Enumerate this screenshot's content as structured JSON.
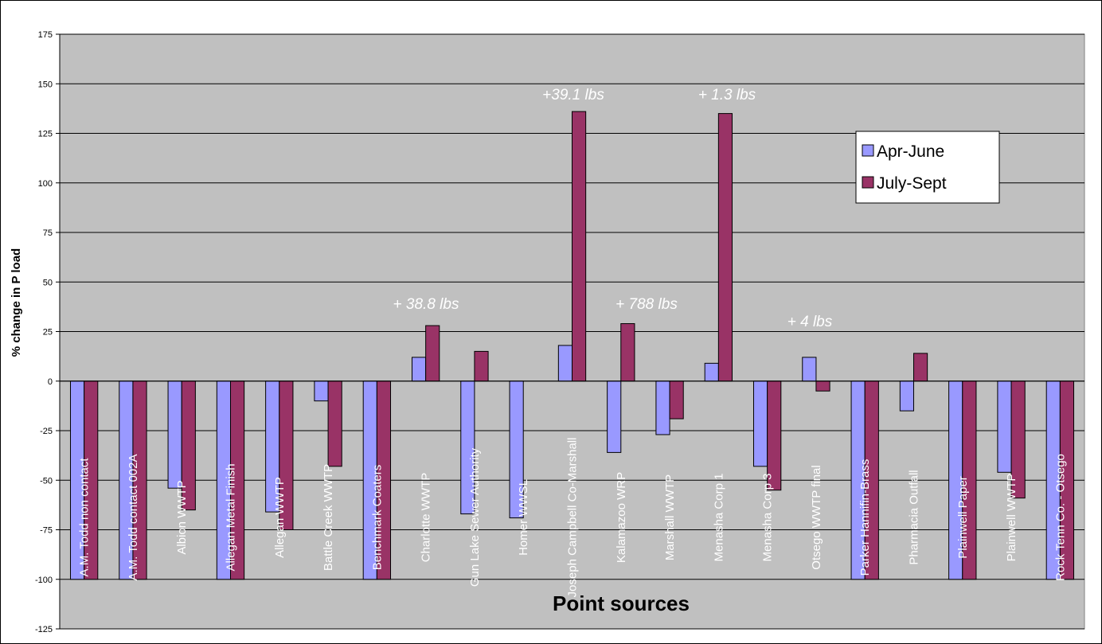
{
  "chart_data": {
    "type": "bar",
    "x_label": "Point sources",
    "y_label": "% change in P load",
    "categories": [
      "A.M. Todd non contact",
      "A.M. Todd contact 002A",
      "Albion WWTP",
      "Allegan Metal Finish",
      "Allegan WWTP",
      "Battle Creek WWTP",
      "Benchmark Coaters",
      "Charlotte WWTP",
      "Gun Lake Sewer Authority",
      "Homer WWSL",
      "Joseph Campbell Co-Marshall",
      "Kalamazoo WRP",
      "Marshall WWTP",
      "Menasha Corp 1",
      "Menasha Corp 3",
      "Otsego WWTP final",
      "Parker Hannifin-Brass",
      "Pharmacia Outfall",
      "Plainwell Paper",
      "Plainwell WWTP",
      "Rock Tenn Co. - Otsego"
    ],
    "series": [
      {
        "name": "Apr-June",
        "color": "#9999ff",
        "values": [
          -100,
          -100,
          -54,
          -100,
          -66,
          -10,
          -100,
          12,
          -67,
          -69,
          18,
          -36,
          -27,
          9,
          -43,
          12,
          -100,
          -15,
          -100,
          -46,
          -100
        ]
      },
      {
        "name": "July-Sept",
        "color": "#993366",
        "values": [
          -100,
          -100,
          -65,
          -100,
          -75,
          -43,
          -100,
          28,
          15,
          null,
          136,
          29,
          -19,
          135,
          -55,
          -5,
          -100,
          14,
          -100,
          -59,
          -100
        ]
      }
    ],
    "annotations": [
      "+ 38.8 lbs",
      "+39.1 lbs",
      "+ 788 lbs",
      "+ 1.3 lbs",
      "+ 4 lbs"
    ],
    "ylim": [
      -125,
      175
    ],
    "yticks": [
      -125,
      -100,
      -75,
      -50,
      -25,
      0,
      25,
      50,
      75,
      100,
      125,
      150,
      175
    ],
    "grid": true,
    "legend": "upper right",
    "plot_background": "#c0c0c0"
  }
}
